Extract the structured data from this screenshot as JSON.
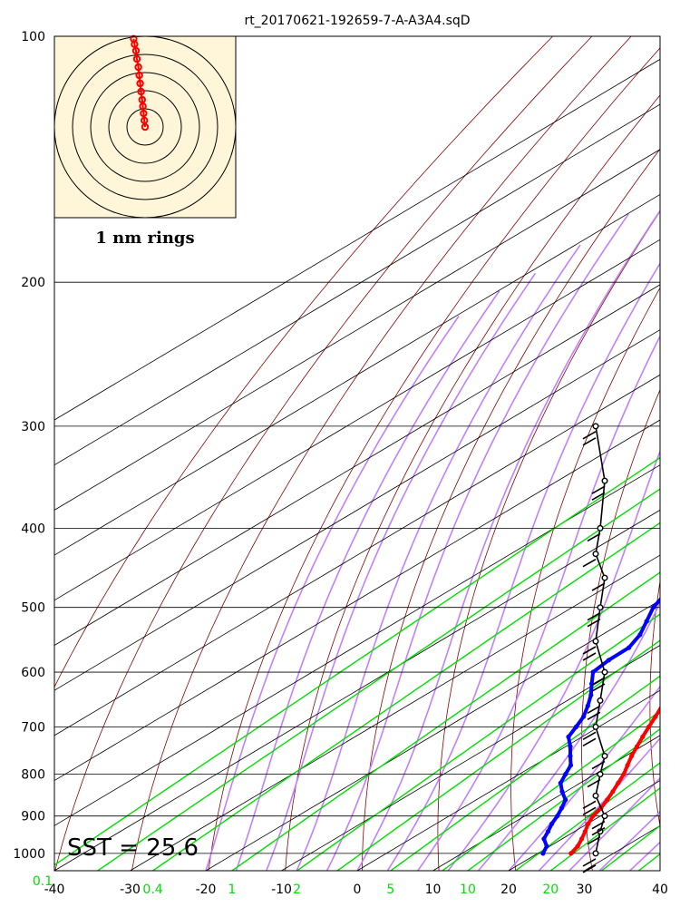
{
  "chart_data": {
    "type": "skew-t",
    "title": "rt_20170621-192659-7-A-A3A4.sqD",
    "sst_label": "SST = 25.6",
    "hodograph_label": "1 nm rings",
    "x_range": [
      -40,
      40
    ],
    "p_range": [
      1050,
      100
    ],
    "pressure_ticks": [
      100,
      200,
      300,
      400,
      500,
      600,
      700,
      800,
      900,
      1000
    ],
    "temperature_ticks": [
      -40,
      -30,
      -20,
      -10,
      0,
      10,
      20,
      30,
      40
    ],
    "mixing_ratio_ticks": [
      "0.1",
      "0.4",
      "1",
      "2",
      "5",
      "10",
      "20"
    ],
    "temperature_profile": [
      {
        "p": 1000,
        "t": 24.4
      },
      {
        "p": 980,
        "t": 23.7
      },
      {
        "p": 960,
        "t": 22.6
      },
      {
        "p": 940,
        "t": 21.4
      },
      {
        "p": 920,
        "t": 20.1
      },
      {
        "p": 900,
        "t": 19.0
      },
      {
        "p": 880,
        "t": 18.3
      },
      {
        "p": 860,
        "t": 17.3
      },
      {
        "p": 840,
        "t": 16.2
      },
      {
        "p": 820,
        "t": 15.0
      },
      {
        "p": 800,
        "t": 13.8
      },
      {
        "p": 780,
        "t": 12.3
      },
      {
        "p": 760,
        "t": 10.8
      },
      {
        "p": 740,
        "t": 9.4
      },
      {
        "p": 720,
        "t": 8.0
      },
      {
        "p": 700,
        "t": 6.6
      },
      {
        "p": 680,
        "t": 5.2
      },
      {
        "p": 660,
        "t": 3.7
      },
      {
        "p": 640,
        "t": 2.3
      },
      {
        "p": 620,
        "t": 0.8
      },
      {
        "p": 600,
        "t": -0.8
      },
      {
        "p": 580,
        "t": -2.3
      },
      {
        "p": 560,
        "t": -3.9
      },
      {
        "p": 540,
        "t": -5.6
      },
      {
        "p": 520,
        "t": -7.4
      },
      {
        "p": 500,
        "t": -9.2
      },
      {
        "p": 480,
        "t": -10.7
      },
      {
        "p": 460,
        "t": -12.9
      },
      {
        "p": 440,
        "t": -15.2
      },
      {
        "p": 420,
        "t": -17.2
      },
      {
        "p": 400,
        "t": -19.8
      },
      {
        "p": 380,
        "t": -22.4
      },
      {
        "p": 360,
        "t": -25.1
      },
      {
        "p": 340,
        "t": -28.0
      },
      {
        "p": 320,
        "t": -31.0
      },
      {
        "p": 300,
        "t": -34.4
      },
      {
        "p": 285,
        "t": -37.2
      },
      {
        "p": 270,
        "t": -40.2
      },
      {
        "p": 260,
        "t": -42.3
      }
    ],
    "dewpoint_profile": [
      {
        "p": 1000,
        "t": 20.7
      },
      {
        "p": 980,
        "t": 19.6
      },
      {
        "p": 960,
        "t": 17.6
      },
      {
        "p": 940,
        "t": 16.5
      },
      {
        "p": 920,
        "t": 15.3
      },
      {
        "p": 900,
        "t": 14.3
      },
      {
        "p": 880,
        "t": 13.1
      },
      {
        "p": 860,
        "t": 11.8
      },
      {
        "p": 840,
        "t": 9.5
      },
      {
        "p": 820,
        "t": 7.4
      },
      {
        "p": 800,
        "t": 6.1
      },
      {
        "p": 780,
        "t": 4.8
      },
      {
        "p": 760,
        "t": 2.7
      },
      {
        "p": 740,
        "t": 0.6
      },
      {
        "p": 720,
        "t": -1.8
      },
      {
        "p": 700,
        "t": -3.0
      },
      {
        "p": 680,
        "t": -4.3
      },
      {
        "p": 660,
        "t": -6.1
      },
      {
        "p": 640,
        "t": -8.1
      },
      {
        "p": 620,
        "t": -10.5
      },
      {
        "p": 600,
        "t": -12.9
      },
      {
        "p": 580,
        "t": -13.5
      },
      {
        "p": 560,
        "t": -13.6
      },
      {
        "p": 540,
        "t": -15.0
      },
      {
        "p": 520,
        "t": -17.1
      },
      {
        "p": 500,
        "t": -19.3
      },
      {
        "p": 480,
        "t": -20.8
      },
      {
        "p": 460,
        "t": -23.7
      },
      {
        "p": 440,
        "t": -25.6
      },
      {
        "p": 420,
        "t": -27.5
      },
      {
        "p": 400,
        "t": -29.6
      },
      {
        "p": 380,
        "t": -32.8
      },
      {
        "p": 360,
        "t": -36.9
      },
      {
        "p": 340,
        "t": -42.4
      },
      {
        "p": 320,
        "t": -49.2
      },
      {
        "p": 300,
        "t": -56.6
      },
      {
        "p": 290,
        "t": -60.4
      },
      {
        "p": 280,
        "t": -63.6
      },
      {
        "p": 272,
        "t": -64.8
      },
      {
        "p": 265,
        "t": -62.5
      },
      {
        "p": 260,
        "t": -57.0
      }
    ],
    "wind_barbs": [
      {
        "p": 1000,
        "flags": 2
      },
      {
        "p": 940,
        "flags": 1
      },
      {
        "p": 900,
        "flags": 2
      },
      {
        "p": 850,
        "flags": 2
      },
      {
        "p": 800,
        "flags": 1
      },
      {
        "p": 760,
        "flags": 1
      },
      {
        "p": 700,
        "flags": 2
      },
      {
        "p": 650,
        "flags": 2
      },
      {
        "p": 600,
        "flags": 2
      },
      {
        "p": 550,
        "flags": 2
      },
      {
        "p": 500,
        "flags": 2
      },
      {
        "p": 460,
        "flags": 1
      },
      {
        "p": 430,
        "flags": 1
      },
      {
        "p": 400,
        "flags": 1
      },
      {
        "p": 350,
        "flags": 2
      },
      {
        "p": 300,
        "flags": 2
      }
    ],
    "hodograph": {
      "ring_count": 5,
      "trace": [
        [
          0.0,
          0.0
        ],
        [
          -0.04,
          0.12
        ],
        [
          -0.08,
          0.25
        ],
        [
          -0.12,
          0.38
        ],
        [
          -0.16,
          0.5
        ],
        [
          -0.22,
          0.65
        ],
        [
          -0.27,
          0.8
        ],
        [
          -0.32,
          0.95
        ],
        [
          -0.37,
          1.1
        ],
        [
          -0.45,
          1.25
        ],
        [
          -0.5,
          1.4
        ],
        [
          -0.58,
          1.52
        ],
        [
          -0.63,
          1.62
        ]
      ]
    },
    "colors": {
      "temperature": "#ff0000",
      "dewpoint": "#0000ff",
      "isotherm": "#000000",
      "dry_adiabat": "#8b0000",
      "moist_adiabat": "#c080ff",
      "mixing_ratio": "#00e000",
      "hodograph_bg": "#fff5d8"
    }
  }
}
